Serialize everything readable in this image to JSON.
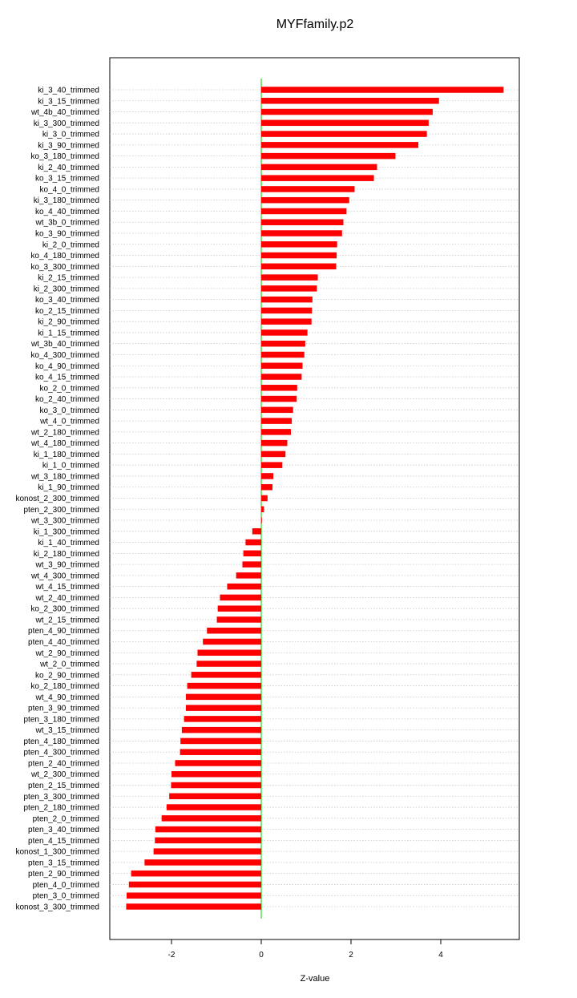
{
  "chart_data": {
    "type": "bar",
    "orientation": "horizontal",
    "title": "MYFfamily.p2",
    "xlabel": "Z-value",
    "ylabel": "",
    "xlim": [
      -3.3,
      5.8
    ],
    "xticks": [
      "-2",
      "0",
      "2",
      "4"
    ],
    "xtick_values": [
      -2,
      0,
      2,
      4
    ],
    "grid": "horizontal dotted",
    "bar_color": "#ff0000",
    "zero_line_color": "#00cc00",
    "categories": [
      "ki_3_40_trimmed",
      "ki_3_15_trimmed",
      "wt_4b_40_trimmed",
      "ki_3_300_trimmed",
      "ki_3_0_trimmed",
      "ki_3_90_trimmed",
      "ko_3_180_trimmed",
      "ki_2_40_trimmed",
      "ko_3_15_trimmed",
      "ko_4_0_trimmed",
      "ki_3_180_trimmed",
      "ko_4_40_trimmed",
      "wt_3b_0_trimmed",
      "ko_3_90_trimmed",
      "ki_2_0_trimmed",
      "ko_4_180_trimmed",
      "ko_3_300_trimmed",
      "ki_2_15_trimmed",
      "ki_2_300_trimmed",
      "ko_3_40_trimmed",
      "ko_2_15_trimmed",
      "ki_2_90_trimmed",
      "ki_1_15_trimmed",
      "wt_3b_40_trimmed",
      "ko_4_300_trimmed",
      "ko_4_90_trimmed",
      "ko_4_15_trimmed",
      "ko_2_0_trimmed",
      "ko_2_40_trimmed",
      "ko_3_0_trimmed",
      "wt_4_0_trimmed",
      "wt_2_180_trimmed",
      "wt_4_180_trimmed",
      "ki_1_180_trimmed",
      "ki_1_0_trimmed",
      "wt_3_180_trimmed",
      "ki_1_90_trimmed",
      "konost_2_300_trimmed",
      "pten_2_300_trimmed",
      "wt_3_300_trimmed",
      "ki_1_300_trimmed",
      "ki_1_40_trimmed",
      "ki_2_180_trimmed",
      "wt_3_90_trimmed",
      "wt_4_300_trimmed",
      "wt_4_15_trimmed",
      "wt_2_40_trimmed",
      "ko_2_300_trimmed",
      "wt_2_15_trimmed",
      "pten_4_90_trimmed",
      "pten_4_40_trimmed",
      "wt_2_90_trimmed",
      "wt_2_0_trimmed",
      "ko_2_90_trimmed",
      "ko_2_180_trimmed",
      "wt_4_90_trimmed",
      "pten_3_90_trimmed",
      "pten_3_180_trimmed",
      "wt_3_15_trimmed",
      "pten_4_180_trimmed",
      "pten_4_300_trimmed",
      "pten_2_40_trimmed",
      "wt_2_300_trimmed",
      "pten_2_15_trimmed",
      "pten_3_300_trimmed",
      "pten_2_180_trimmed",
      "pten_2_0_trimmed",
      "pten_3_40_trimmed",
      "pten_4_15_trimmed",
      "konost_1_300_trimmed",
      "pten_3_15_trimmed",
      "pten_2_90_trimmed",
      "pten_4_0_trimmed",
      "pten_3_0_trimmed",
      "konost_3_300_trimmed"
    ],
    "values": [
      5.4,
      3.96,
      3.82,
      3.73,
      3.69,
      3.5,
      2.99,
      2.58,
      2.51,
      2.08,
      1.96,
      1.9,
      1.83,
      1.8,
      1.69,
      1.68,
      1.67,
      1.26,
      1.24,
      1.14,
      1.13,
      1.12,
      1.03,
      0.98,
      0.96,
      0.92,
      0.9,
      0.8,
      0.79,
      0.71,
      0.68,
      0.66,
      0.58,
      0.54,
      0.47,
      0.27,
      0.25,
      0.14,
      0.06,
      0.01,
      -0.2,
      -0.35,
      -0.4,
      -0.42,
      -0.56,
      -0.76,
      -0.92,
      -0.97,
      -0.99,
      -1.21,
      -1.3,
      -1.42,
      -1.44,
      -1.56,
      -1.65,
      -1.68,
      -1.68,
      -1.72,
      -1.77,
      -1.8,
      -1.81,
      -1.92,
      -2.0,
      -2.01,
      -2.05,
      -2.11,
      -2.22,
      -2.36,
      -2.37,
      -2.4,
      -2.6,
      -2.9,
      -2.95,
      -3.0,
      -3.01
    ]
  }
}
